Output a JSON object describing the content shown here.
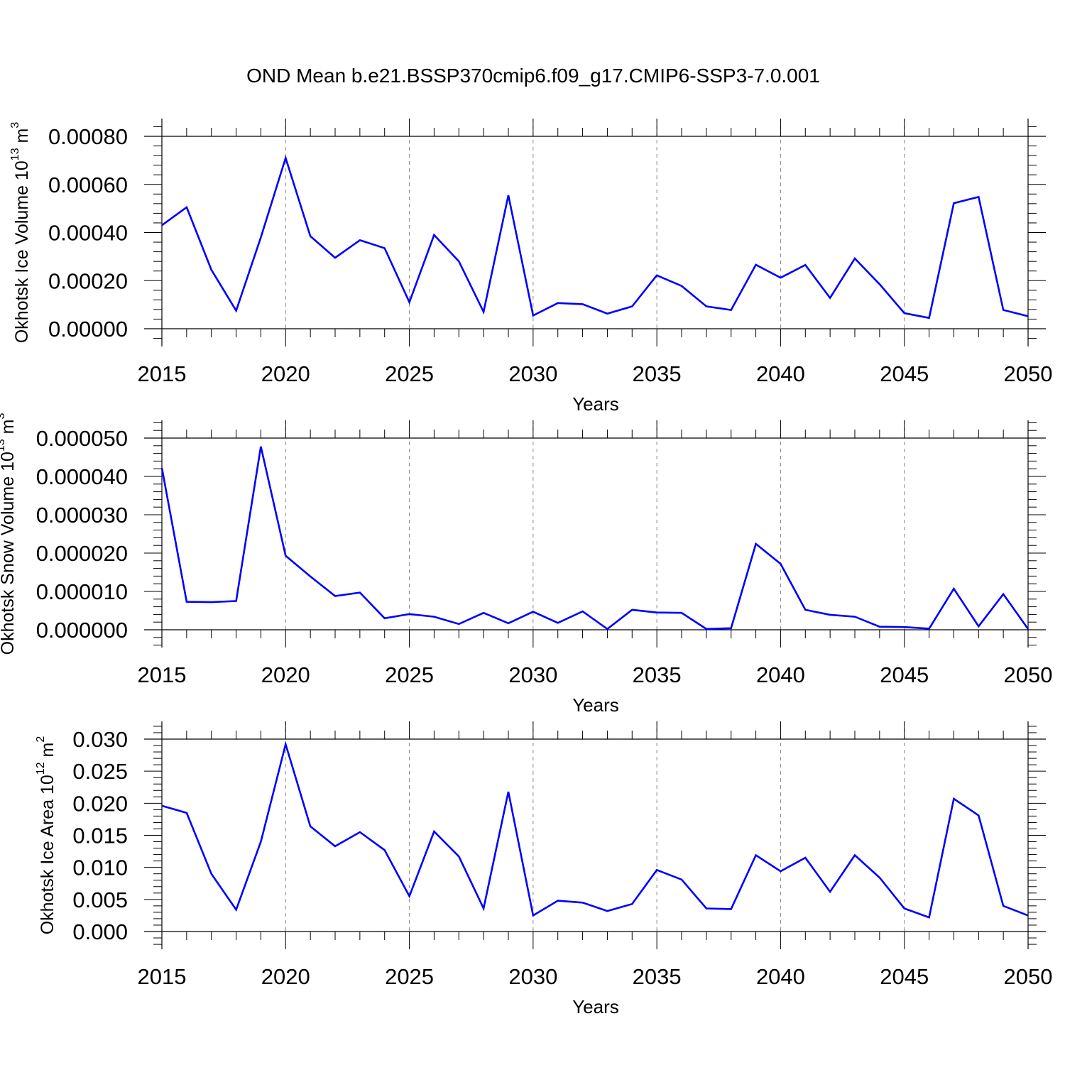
{
  "figure_title": "OND Mean b.e21.BSSP370cmip6.f09_g17.CMIP6-SSP3-7.0.001",
  "line_color": "#0000ff",
  "chart_data": [
    {
      "type": "line",
      "title": "",
      "xlabel": "Years",
      "ylabel": {
        "main": "Okhotsk Ice Volume 10",
        "sup1": "13",
        "mid": " m",
        "sup2": "3"
      },
      "xlim": [
        2015,
        2050
      ],
      "ylim": [
        0,
        0.0008
      ],
      "grid": "vertical dashed at major x ticks",
      "x_ticks": [
        "2015",
        "2020",
        "2025",
        "2030",
        "2035",
        "2040",
        "2045",
        "2050"
      ],
      "y_ticks": [
        "0.00000",
        "0.00020",
        "0.00040",
        "0.00060",
        "0.00080"
      ],
      "x": [
        2015,
        2016,
        2017,
        2018,
        2019,
        2020,
        2021,
        2022,
        2023,
        2024,
        2025,
        2026,
        2027,
        2028,
        2029,
        2030,
        2031,
        2032,
        2033,
        2034,
        2035,
        2036,
        2037,
        2038,
        2039,
        2040,
        2041,
        2042,
        2043,
        2044,
        2045,
        2046,
        2047,
        2048,
        2049,
        2050
      ],
      "series": [
        {
          "values": [
            0.00043,
            0.000505,
            0.000245,
            7.5e-05,
            0.00038,
            0.00071,
            0.000385,
            0.000295,
            0.000368,
            0.000335,
            0.00011,
            0.00039,
            0.00028,
            7e-05,
            0.000555,
            5.5e-05,
            0.000107,
            0.000102,
            6.3e-05,
            9.3e-05,
            0.000222,
            0.000178,
            9.3e-05,
            7.8e-05,
            0.000266,
            0.000212,
            0.000265,
            0.000128,
            0.000292,
            0.000185,
            6.5e-05,
            4.5e-05,
            0.000522,
            0.000548,
            7.8e-05,
            5.2e-05
          ]
        }
      ]
    },
    {
      "type": "line",
      "title": "",
      "xlabel": "Years",
      "ylabel": {
        "main": "Okhotsk Snow Volume 10",
        "sup1": "13",
        "mid": " m",
        "sup2": "3"
      },
      "xlim": [
        2015,
        2050
      ],
      "ylim": [
        0,
        5e-05
      ],
      "grid": "vertical dashed at major x ticks",
      "x_ticks": [
        "2015",
        "2020",
        "2025",
        "2030",
        "2035",
        "2040",
        "2045",
        "2050"
      ],
      "y_ticks": [
        "0.000000",
        "0.000010",
        "0.000020",
        "0.000030",
        "0.000040",
        "0.000050"
      ],
      "x": [
        2015,
        2016,
        2017,
        2018,
        2019,
        2020,
        2021,
        2022,
        2023,
        2024,
        2025,
        2026,
        2027,
        2028,
        2029,
        2030,
        2031,
        2032,
        2033,
        2034,
        2035,
        2036,
        2037,
        2038,
        2039,
        2040,
        2041,
        2042,
        2043,
        2044,
        2045,
        2046,
        2047,
        2048,
        2049,
        2050
      ],
      "series": [
        {
          "values": [
            4.22e-05,
            7.3e-06,
            7.2e-06,
            7.5e-06,
            4.78e-05,
            1.93e-05,
            1.39e-05,
            8.8e-06,
            9.7e-06,
            3e-06,
            4.1e-06,
            3.4e-06,
            1.5e-06,
            4.4e-06,
            1.7e-06,
            4.7e-06,
            1.8e-06,
            4.8e-06,
            2e-07,
            5.2e-06,
            4.5e-06,
            4.4e-06,
            2e-07,
            4e-07,
            2.24e-05,
            1.72e-05,
            5.2e-06,
            3.9e-06,
            3.4e-06,
            8e-07,
            7e-07,
            3e-07,
            1.07e-05,
            9e-07,
            9.3e-06,
            2e-07
          ]
        }
      ]
    },
    {
      "type": "line",
      "title": "",
      "xlabel": "Years",
      "ylabel": {
        "main": "Okhotsk Ice Area 10",
        "sup1": "12",
        "mid": " m",
        "sup2": "2"
      },
      "xlim": [
        2015,
        2050
      ],
      "ylim": [
        0,
        0.03
      ],
      "grid": "vertical dashed at major x ticks",
      "x_ticks": [
        "2015",
        "2020",
        "2025",
        "2030",
        "2035",
        "2040",
        "2045",
        "2050"
      ],
      "y_ticks": [
        "0.000",
        "0.005",
        "0.010",
        "0.015",
        "0.020",
        "0.025",
        "0.030"
      ],
      "x": [
        2015,
        2016,
        2017,
        2018,
        2019,
        2020,
        2021,
        2022,
        2023,
        2024,
        2025,
        2026,
        2027,
        2028,
        2029,
        2030,
        2031,
        2032,
        2033,
        2034,
        2035,
        2036,
        2037,
        2038,
        2039,
        2040,
        2041,
        2042,
        2043,
        2044,
        2045,
        2046,
        2047,
        2048,
        2049,
        2050
      ],
      "series": [
        {
          "values": [
            0.0196,
            0.0185,
            0.009,
            0.0034,
            0.014,
            0.0292,
            0.0164,
            0.0133,
            0.0155,
            0.0127,
            0.0055,
            0.0156,
            0.0117,
            0.0036,
            0.0218,
            0.0025,
            0.0048,
            0.0045,
            0.0032,
            0.0043,
            0.0096,
            0.0081,
            0.0036,
            0.0035,
            0.0119,
            0.0094,
            0.0115,
            0.0062,
            0.0119,
            0.0084,
            0.0036,
            0.0022,
            0.0207,
            0.0181,
            0.004,
            0.0025
          ]
        }
      ]
    }
  ]
}
